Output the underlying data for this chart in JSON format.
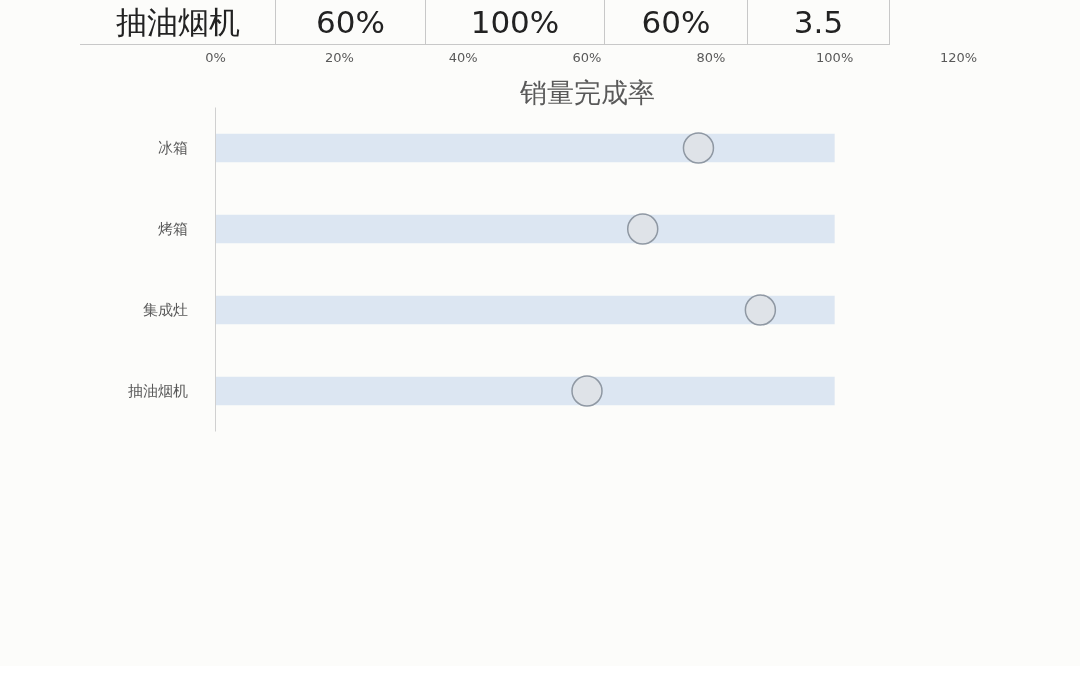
{
  "chart_data": {
    "type": "bar",
    "orientation": "horizontal",
    "title": "销量完成率",
    "categories": [
      "冰箱",
      "烤箱",
      "集成灶",
      "抽油烟机"
    ],
    "series": [
      {
        "color": "#dce6f2",
        "values": [
          100,
          100,
          100,
          100
        ]
      },
      {
        "type": "scatter",
        "color": "#dfe3e8",
        "values": [
          78,
          69,
          88,
          60
        ]
      }
    ],
    "marker": "circle",
    "xlim": [
      0,
      120
    ],
    "xticks": [
      {
        "value": 0,
        "label": "0%"
      },
      {
        "value": 20,
        "label": "20%"
      },
      {
        "value": 40,
        "label": "40%"
      },
      {
        "value": 60,
        "label": "60%"
      },
      {
        "value": 80,
        "label": "80%"
      },
      {
        "value": 100,
        "label": "100%"
      },
      {
        "value": 120,
        "label": "120%"
      }
    ],
    "annotations": [
      "抽油烟机",
      "60%",
      "100%",
      "60%",
      "3.5"
    ]
  }
}
